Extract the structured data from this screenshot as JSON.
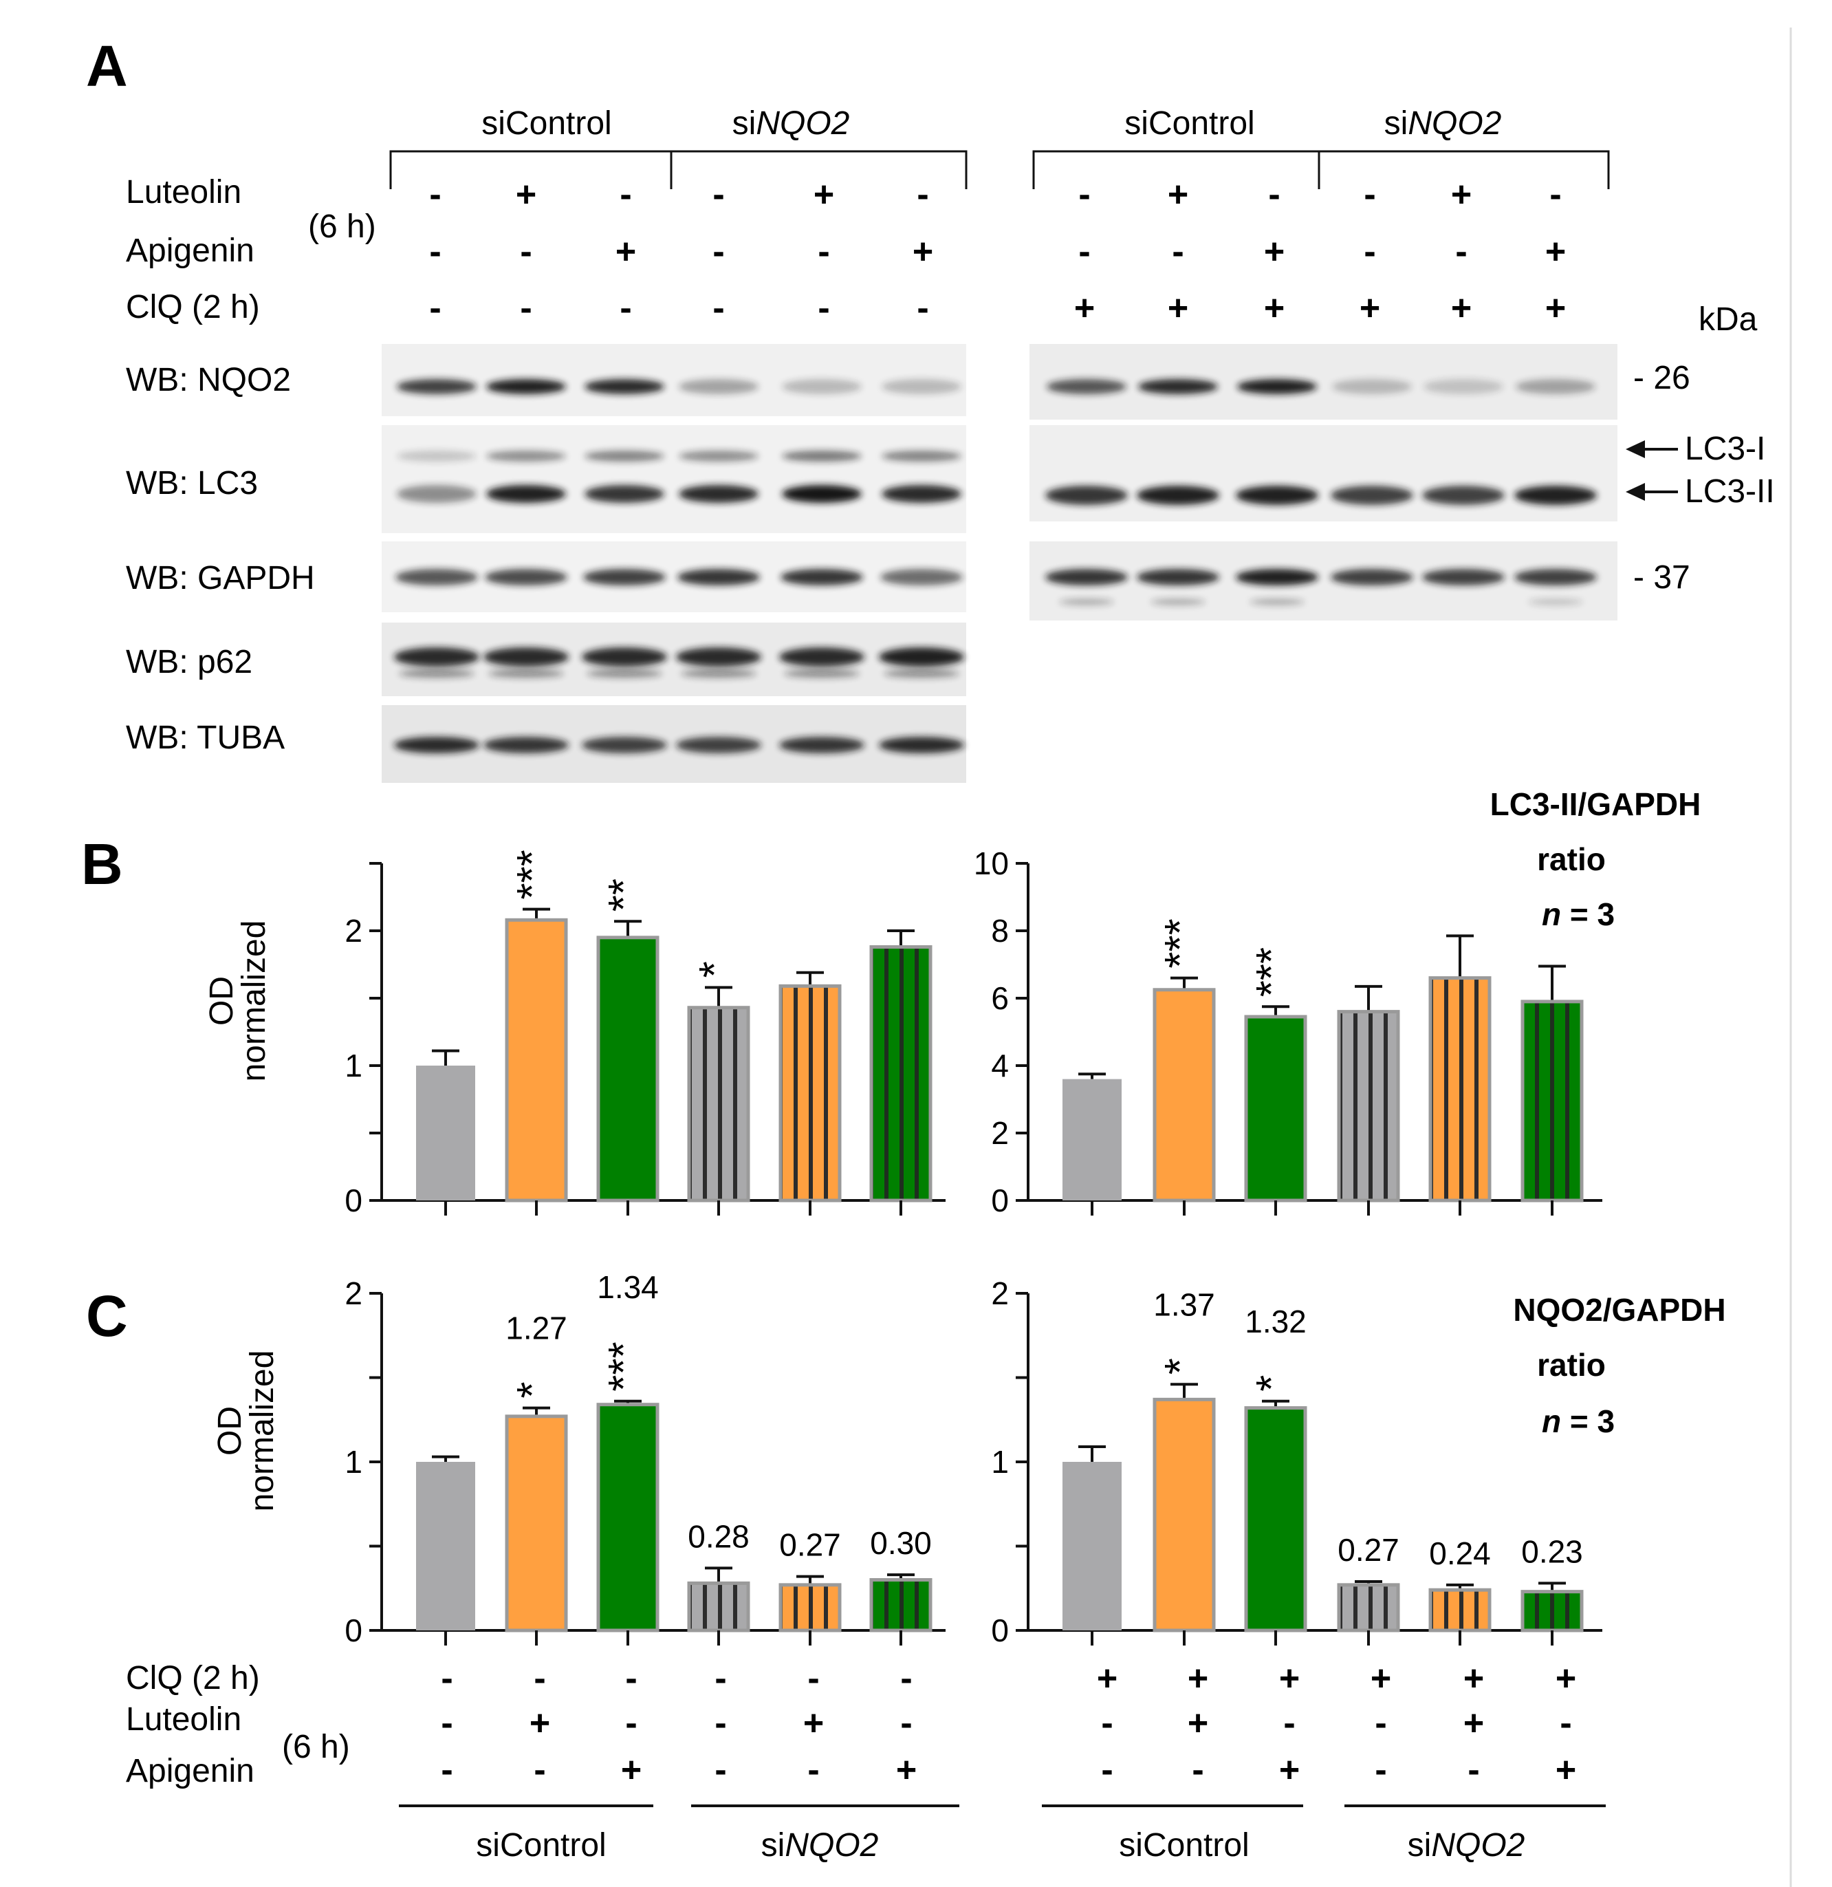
{
  "panels": {
    "A": "A",
    "B": "B",
    "C": "C"
  },
  "groups": {
    "ctrl": "siControl",
    "si_prefix": "si",
    "si_gene": "NQO2"
  },
  "treatments": {
    "luteolin": "Luteolin",
    "apigenin": "Apigenin",
    "time6": "(6 h)",
    "clq": "ClQ (2 h)"
  },
  "signs": {
    "left_luteolin": [
      "-",
      "+",
      "-",
      "-",
      "+",
      "-"
    ],
    "left_apigenin": [
      "-",
      "-",
      "+",
      "-",
      "-",
      "+"
    ],
    "left_clq": [
      "-",
      "-",
      "-",
      "-",
      "-",
      "-"
    ],
    "right_luteolin": [
      "-",
      "+",
      "-",
      "-",
      "+",
      "-"
    ],
    "right_apigenin": [
      "-",
      "-",
      "+",
      "-",
      "-",
      "+"
    ],
    "right_clq": [
      "+",
      "+",
      "+",
      "+",
      "+",
      "+"
    ]
  },
  "blots": {
    "labels": [
      "WB: NQO2",
      "WB: LC3",
      "WB: GAPDH",
      "WB: p62",
      "WB: TUBA"
    ],
    "kda_header": "kDa",
    "markers": [
      "- 26",
      "- 37"
    ],
    "arrows": [
      "LC3-I",
      "LC3-II"
    ]
  },
  "annotations": {
    "b_title": "LC3-II/GAPDH",
    "c_title": "NQO2/GAPDH",
    "ratio": "ratio",
    "n_italic": "n",
    "n_rest": " = 3",
    "od": "OD",
    "normalized": "normalized"
  },
  "colors": {
    "gray": "#a9a9ab",
    "orange": "#ffa040",
    "green": "#008000",
    "bar_outline": "#9a9a9a"
  },
  "chart_data": [
    {
      "type": "bar",
      "panel": "B-left",
      "ylabel": "OD normalized",
      "ylim": [
        0,
        2.5
      ],
      "yticks": [
        0,
        1,
        2
      ],
      "values": [
        1.0,
        2.08,
        1.95,
        1.43,
        1.59,
        1.88
      ],
      "errors": [
        0.11,
        0.08,
        0.12,
        0.15,
        0.1,
        0.12
      ],
      "significance": [
        "",
        "***",
        "**",
        "*",
        "",
        ""
      ],
      "value_labels": [
        "",
        "",
        "",
        "",
        "",
        ""
      ]
    },
    {
      "type": "bar",
      "panel": "B-right",
      "ylim": [
        0,
        10
      ],
      "yticks": [
        0,
        2,
        4,
        6,
        8,
        10
      ],
      "values": [
        3.6,
        6.25,
        5.45,
        5.6,
        6.6,
        5.9
      ],
      "errors": [
        0.15,
        0.35,
        0.3,
        0.75,
        1.25,
        1.05
      ],
      "significance": [
        "",
        "***",
        "***",
        "",
        "",
        ""
      ],
      "value_labels": [
        "",
        "",
        "",
        "",
        "",
        ""
      ]
    },
    {
      "type": "bar",
      "panel": "C-left",
      "ylabel": "OD normalized",
      "ylim": [
        0,
        2
      ],
      "yticks": [
        0,
        1,
        2
      ],
      "values": [
        1.0,
        1.27,
        1.34,
        0.28,
        0.27,
        0.3
      ],
      "errors": [
        0.03,
        0.05,
        0.02,
        0.09,
        0.05,
        0.03
      ],
      "significance": [
        "",
        "*",
        "***",
        "",
        "",
        ""
      ],
      "value_labels": [
        "",
        "1.27",
        "1.34",
        "0.28",
        "0.27",
        "0.30"
      ]
    },
    {
      "type": "bar",
      "panel": "C-right",
      "ylim": [
        0,
        2
      ],
      "yticks": [
        0,
        1,
        2
      ],
      "values": [
        1.0,
        1.37,
        1.32,
        0.27,
        0.24,
        0.23
      ],
      "errors": [
        0.09,
        0.09,
        0.04,
        0.02,
        0.03,
        0.05
      ],
      "significance": [
        "",
        "*",
        "*",
        "",
        "",
        ""
      ],
      "value_labels": [
        "",
        "1.37",
        "1.32",
        "0.27",
        "0.24",
        "0.23"
      ]
    }
  ]
}
